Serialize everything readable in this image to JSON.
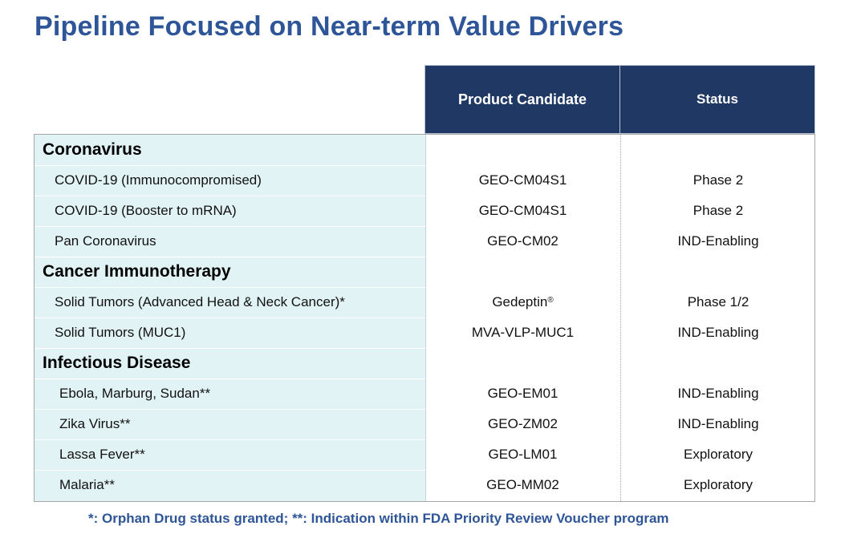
{
  "title": "Pipeline Focused on Near-term Value Drivers",
  "table": {
    "headers": {
      "product": "Product Candidate",
      "status": "Status"
    },
    "rows": [
      {
        "type": "category",
        "label": "Coronavirus"
      },
      {
        "type": "item",
        "label": "COVID-19 (Immunocompromised)",
        "product": "GEO-CM04S1",
        "status": "Phase 2"
      },
      {
        "type": "item",
        "label": "COVID-19 (Booster to mRNA)",
        "product": "GEO-CM04S1",
        "status": "Phase 2"
      },
      {
        "type": "item",
        "label": "Pan Coronavirus",
        "product": "GEO-CM02",
        "status": "IND-Enabling"
      },
      {
        "type": "category",
        "label": "Cancer Immunotherapy"
      },
      {
        "type": "item",
        "label": "Solid Tumors (Advanced Head & Neck Cancer)*",
        "product": "Gedeptin",
        "product_sup": "®",
        "status": "Phase 1/2"
      },
      {
        "type": "item",
        "label": "Solid Tumors (MUC1)",
        "product": "MVA-VLP-MUC1",
        "status": "IND-Enabling"
      },
      {
        "type": "category",
        "label": "Infectious Disease"
      },
      {
        "type": "item",
        "label": "Ebola, Marburg, Sudan**",
        "product": "GEO-EM01",
        "status": "IND-Enabling"
      },
      {
        "type": "item",
        "label": "Zika Virus**",
        "product": "GEO-ZM02",
        "status": "IND-Enabling"
      },
      {
        "type": "item",
        "label": "Lassa Fever**",
        "product": "GEO-LM01",
        "status": "Exploratory"
      },
      {
        "type": "item",
        "label": "Malaria**",
        "product": "GEO-MM02",
        "status": "Exploratory"
      }
    ]
  },
  "footnote": "*: Orphan Drug status granted;  **: Indication within FDA Priority Review Voucher program",
  "colors": {
    "title": "#2e5597",
    "header_bg": "#1f3864",
    "label_col_bg": "#e2f3f6"
  }
}
